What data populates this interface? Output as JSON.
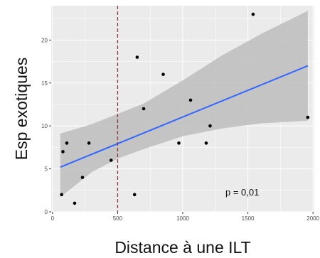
{
  "chart_data": {
    "type": "scatter",
    "xlabel": "Distance à une ILT",
    "ylabel": "Esp exotiques",
    "xlim": [
      -10,
      2010
    ],
    "ylim": [
      0,
      24
    ],
    "x_ticks": [
      0,
      500,
      1000,
      1500,
      2000
    ],
    "y_ticks": [
      0,
      5,
      10,
      15,
      20
    ],
    "grid": true,
    "points": [
      {
        "x": 70,
        "y": 2
      },
      {
        "x": 80,
        "y": 7
      },
      {
        "x": 110,
        "y": 8
      },
      {
        "x": 170,
        "y": 1
      },
      {
        "x": 230,
        "y": 4
      },
      {
        "x": 280,
        "y": 8
      },
      {
        "x": 450,
        "y": 6
      },
      {
        "x": 630,
        "y": 2
      },
      {
        "x": 650,
        "y": 18
      },
      {
        "x": 700,
        "y": 12
      },
      {
        "x": 850,
        "y": 16
      },
      {
        "x": 970,
        "y": 8
      },
      {
        "x": 1060,
        "y": 13
      },
      {
        "x": 1180,
        "y": 8
      },
      {
        "x": 1210,
        "y": 10
      },
      {
        "x": 1540,
        "y": 23
      },
      {
        "x": 1960,
        "y": 11
      }
    ],
    "fit_line": {
      "x": [
        60,
        1960
      ],
      "y": [
        5.2,
        17
      ]
    },
    "confidence_band": {
      "x": [
        60,
        300,
        500,
        700,
        1000,
        1300,
        1600,
        1960
      ],
      "lower": [
        1.7,
        4.6,
        6.2,
        7.3,
        8.8,
        9.7,
        10.3,
        10.6
      ],
      "upper": [
        9.1,
        10.2,
        11.4,
        12.6,
        15.3,
        18.2,
        20.7,
        23.4
      ]
    },
    "vline": {
      "x": 500,
      "color": "#d7191c",
      "style": "dashed"
    },
    "annotation": "p = 0,01",
    "colors": {
      "panel": "#ebebeb",
      "grid_major": "#ffffff",
      "points": "#000000",
      "fit_line": "#3366ff",
      "band": "#bdbdbd"
    }
  }
}
